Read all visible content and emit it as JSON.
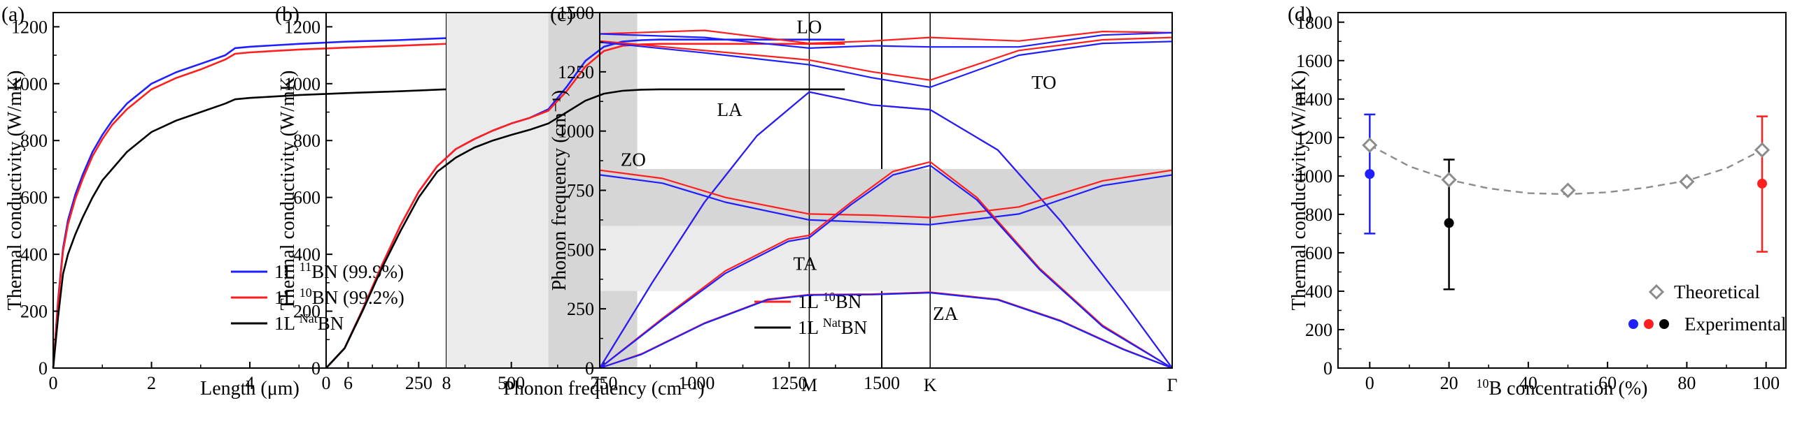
{
  "colors": {
    "blue": "#1f1fff",
    "red": "#ff1f1f",
    "black": "#000000",
    "gray": "#8c8c8c",
    "shade_light": "#ebebeb",
    "shade_dark": "#d6d6d6"
  },
  "chart_data": [
    {
      "id": "a",
      "panel_label": "(a)",
      "type": "line",
      "xlabel": "Length (μm)",
      "ylabel": "Thermal conductivity (W/mK)",
      "xlim": [
        0,
        8
      ],
      "ylim": [
        0,
        1250
      ],
      "xticks": [
        0,
        2,
        4,
        6,
        8
      ],
      "yticks": [
        0,
        200,
        400,
        600,
        800,
        1000,
        1200
      ],
      "legend_position": "bottom-right",
      "series": [
        {
          "name": "1L ¹¹BN (99.9%)",
          "legend": {
            "pre": "1L ",
            "sup": "11",
            "post": "BN (99.9%)"
          },
          "color": "#1f1fff",
          "x": [
            0,
            0.1,
            0.2,
            0.3,
            0.45,
            0.6,
            0.8,
            1.0,
            1.2,
            1.5,
            2.0,
            2.5,
            3.0,
            3.5,
            3.7,
            4.0,
            5.0,
            6.0,
            7.0,
            8.0
          ],
          "y": [
            0,
            240,
            420,
            520,
            610,
            680,
            760,
            820,
            870,
            930,
            1000,
            1040,
            1070,
            1100,
            1125,
            1130,
            1140,
            1148,
            1153,
            1160
          ]
        },
        {
          "name": "1L ¹⁰BN (99.2%)",
          "legend": {
            "pre": "1L ",
            "sup": "10",
            "post": "BN (99.2%)"
          },
          "color": "#ff1f1f",
          "x": [
            0,
            0.1,
            0.2,
            0.3,
            0.45,
            0.6,
            0.8,
            1.0,
            1.2,
            1.5,
            2.0,
            2.5,
            3.0,
            3.5,
            3.7,
            4.0,
            5.0,
            6.0,
            7.0,
            8.0
          ],
          "y": [
            0,
            230,
            410,
            505,
            595,
            665,
            745,
            805,
            855,
            910,
            980,
            1020,
            1050,
            1085,
            1105,
            1110,
            1120,
            1127,
            1133,
            1140
          ]
        },
        {
          "name": "1L ᴺᵃᵗBN",
          "legend": {
            "pre": "1L ",
            "sup": "Nat",
            "post": "BN"
          },
          "color": "#000000",
          "x": [
            0,
            0.1,
            0.2,
            0.3,
            0.45,
            0.6,
            0.8,
            1.0,
            1.2,
            1.5,
            2.0,
            2.5,
            3.0,
            3.5,
            3.7,
            4.0,
            5.0,
            6.0,
            7.0,
            8.0
          ],
          "y": [
            0,
            180,
            330,
            400,
            470,
            530,
            600,
            660,
            700,
            760,
            830,
            870,
            900,
            930,
            945,
            950,
            960,
            967,
            973,
            980
          ]
        }
      ]
    },
    {
      "id": "b",
      "panel_label": "(b)",
      "type": "line",
      "xlabel": "Phonon frequency (cm⁻¹)",
      "ylabel": "Thermal conductivity (W/mK)",
      "xlim": [
        0,
        1500
      ],
      "ylim": [
        0,
        1250
      ],
      "xticks": [
        0,
        250,
        500,
        750,
        1000,
        1250,
        1500
      ],
      "yticks": [
        0,
        200,
        400,
        600,
        800,
        1000,
        1200
      ],
      "legend_position": "bottom-right",
      "shaded_regions": [
        {
          "from": 325,
          "to": 600,
          "tone": "light"
        },
        {
          "from": 600,
          "to": 840,
          "tone": "dark"
        }
      ],
      "series": [
        {
          "name": "1L ¹¹BN",
          "legend": {
            "pre": "1L ",
            "sup": "11",
            "post": "BN"
          },
          "color": "#1f1fff",
          "x": [
            0,
            50,
            100,
            150,
            200,
            250,
            300,
            350,
            400,
            450,
            500,
            550,
            600,
            650,
            700,
            750,
            800,
            850,
            900,
            1000,
            1200,
            1400
          ],
          "y": [
            0,
            70,
            210,
            360,
            500,
            620,
            710,
            770,
            805,
            835,
            860,
            880,
            910,
            990,
            1080,
            1130,
            1148,
            1153,
            1155,
            1155,
            1155,
            1155
          ]
        },
        {
          "name": "1L ¹⁰BN",
          "legend": {
            "pre": "1L ",
            "sup": "10",
            "post": "BN"
          },
          "color": "#ff1f1f",
          "x": [
            0,
            50,
            100,
            150,
            200,
            250,
            300,
            350,
            400,
            450,
            500,
            550,
            600,
            650,
            700,
            750,
            800,
            850,
            900,
            1000,
            1200,
            1400
          ],
          "y": [
            0,
            70,
            210,
            360,
            500,
            620,
            710,
            770,
            805,
            835,
            860,
            880,
            905,
            975,
            1060,
            1115,
            1133,
            1138,
            1140,
            1140,
            1140,
            1140
          ]
        },
        {
          "name": "1L ᴺᵃᵗBN",
          "legend": {
            "pre": "1L ",
            "sup": "Nat",
            "post": "BN"
          },
          "color": "#000000",
          "x": [
            0,
            50,
            100,
            150,
            200,
            250,
            300,
            350,
            400,
            450,
            500,
            550,
            600,
            650,
            700,
            750,
            800,
            850,
            900,
            1000,
            1200,
            1400
          ],
          "y": [
            0,
            70,
            205,
            350,
            480,
            600,
            690,
            740,
            775,
            800,
            820,
            838,
            860,
            900,
            940,
            965,
            975,
            979,
            980,
            980,
            980,
            980
          ]
        }
      ]
    },
    {
      "id": "c",
      "panel_label": "(c)",
      "type": "line",
      "ylabel": "Phonon frequency (cm⁻¹)",
      "ylim": [
        0,
        1500
      ],
      "yticks": [
        0,
        250,
        500,
        750,
        1000,
        1250,
        1500
      ],
      "kpoints": [
        {
          "label": "Γ",
          "pos": 0
        },
        {
          "label": "M",
          "pos": 1
        },
        {
          "label": "K",
          "pos": 1.577
        },
        {
          "label": "Γ",
          "pos": 2.732
        }
      ],
      "shaded_regions": [
        {
          "from": 325,
          "to": 600,
          "tone": "light"
        },
        {
          "from": 600,
          "to": 840,
          "tone": "dark"
        }
      ],
      "annotations": [
        {
          "text": "LO",
          "x": 1.0,
          "y": 1440
        },
        {
          "text": "TO",
          "x": 2.12,
          "y": 1205
        },
        {
          "text": "LA",
          "x": 0.62,
          "y": 1090
        },
        {
          "text": "ZO",
          "x": 0.16,
          "y": 880
        },
        {
          "text": "TA",
          "x": 0.98,
          "y": 440
        },
        {
          "text": "ZA",
          "x": 1.65,
          "y": 230
        }
      ],
      "series": [
        {
          "name": "LO",
          "color": "#ff1f1f",
          "x": [
            0,
            0.5,
            1.0,
            1.3,
            1.577,
            2.0,
            2.4,
            2.732
          ],
          "y": [
            1410,
            1425,
            1370,
            1380,
            1395,
            1380,
            1420,
            1415
          ]
        },
        {
          "name": "LO",
          "color": "#1f1fff",
          "x": [
            0,
            0.5,
            1.0,
            1.3,
            1.577,
            2.0,
            2.4,
            2.732
          ],
          "y": [
            1410,
            1395,
            1350,
            1360,
            1355,
            1355,
            1405,
            1415
          ]
        },
        {
          "name": "TO",
          "color": "#ff1f1f",
          "x": [
            0,
            0.5,
            1.0,
            1.3,
            1.577,
            2.0,
            2.4,
            2.732
          ],
          "y": [
            1380,
            1340,
            1300,
            1250,
            1215,
            1340,
            1385,
            1395
          ]
        },
        {
          "name": "TO",
          "color": "#1f1fff",
          "x": [
            0,
            0.5,
            1.0,
            1.3,
            1.577,
            2.0,
            2.4,
            2.732
          ],
          "y": [
            1375,
            1330,
            1280,
            1225,
            1185,
            1320,
            1370,
            1378
          ]
        },
        {
          "name": "LA",
          "color": "#ff1f1f",
          "x": [
            0,
            0.25,
            0.5,
            0.75,
            1.0,
            1.3,
            1.577,
            1.9,
            2.2,
            2.5,
            2.732
          ],
          "y": [
            0,
            360,
            700,
            980,
            1165,
            1110,
            1090,
            920,
            620,
            280,
            0
          ]
        },
        {
          "name": "LA",
          "color": "#1f1fff",
          "x": [
            0,
            0.25,
            0.5,
            0.75,
            1.0,
            1.3,
            1.577,
            1.9,
            2.2,
            2.5,
            2.732
          ],
          "y": [
            0,
            360,
            700,
            980,
            1165,
            1110,
            1090,
            920,
            620,
            280,
            0
          ]
        },
        {
          "name": "ZO",
          "color": "#ff1f1f",
          "x": [
            0,
            0.3,
            0.6,
            1.0,
            1.3,
            1.577,
            2.0,
            2.4,
            2.732
          ],
          "y": [
            835,
            800,
            720,
            650,
            645,
            635,
            680,
            790,
            835
          ]
        },
        {
          "name": "ZO",
          "color": "#1f1fff",
          "x": [
            0,
            0.3,
            0.6,
            1.0,
            1.3,
            1.577,
            2.0,
            2.4,
            2.732
          ],
          "y": [
            815,
            780,
            700,
            625,
            615,
            605,
            650,
            770,
            815
          ]
        },
        {
          "name": "TA",
          "color": "#ff1f1f",
          "x": [
            0,
            0.3,
            0.6,
            0.9,
            1.0,
            1.2,
            1.4,
            1.577,
            1.8,
            2.1,
            2.4,
            2.732
          ],
          "y": [
            0,
            210,
            410,
            545,
            560,
            700,
            830,
            870,
            720,
            420,
            180,
            0
          ]
        },
        {
          "name": "TA",
          "color": "#1f1fff",
          "x": [
            0,
            0.3,
            0.6,
            0.9,
            1.0,
            1.2,
            1.4,
            1.577,
            1.8,
            2.1,
            2.4,
            2.732
          ],
          "y": [
            0,
            205,
            400,
            535,
            550,
            690,
            815,
            855,
            710,
            415,
            175,
            0
          ]
        },
        {
          "name": "ZA",
          "color": "#ff1f1f",
          "x": [
            0,
            0.2,
            0.5,
            0.8,
            1.0,
            1.3,
            1.577,
            1.9,
            2.2,
            2.5,
            2.732
          ],
          "y": [
            0,
            60,
            190,
            290,
            310,
            312,
            320,
            290,
            200,
            80,
            0
          ]
        },
        {
          "name": "ZA",
          "color": "#1f1fff",
          "x": [
            0,
            0.2,
            0.5,
            0.8,
            1.0,
            1.3,
            1.577,
            1.9,
            2.2,
            2.5,
            2.732
          ],
          "y": [
            0,
            58,
            188,
            288,
            308,
            310,
            318,
            288,
            198,
            78,
            0
          ]
        }
      ]
    },
    {
      "id": "d",
      "panel_label": "(d)",
      "type": "scatter",
      "xlabel_sup": "10",
      "xlabel": "B concentration (%)",
      "ylabel": "Thermal conductivity (W/mK)",
      "xlim": [
        -8,
        105
      ],
      "ylim": [
        0,
        1850
      ],
      "xticks": [
        0,
        20,
        40,
        60,
        80,
        100
      ],
      "yticks": [
        0,
        200,
        400,
        600,
        800,
        1000,
        1200,
        1400,
        1600,
        1800
      ],
      "legend_position": "bottom-right",
      "legend": {
        "theoretical": "Theoretical",
        "experimental": "Experimental"
      },
      "theoretical": {
        "color": "#8c8c8c",
        "x": [
          0,
          20,
          50,
          80,
          99
        ],
        "y": [
          1160,
          980,
          925,
          970,
          1135
        ]
      },
      "fit_curve": {
        "color": "#8c8c8c",
        "x": [
          0,
          10,
          20,
          30,
          40,
          50,
          60,
          70,
          80,
          90,
          99
        ],
        "y": [
          1160,
          1050,
          980,
          935,
          910,
          905,
          915,
          940,
          975,
          1040,
          1135
        ]
      },
      "experimental": [
        {
          "x": 0,
          "y": 1010,
          "err_low": 700,
          "err_high": 1320,
          "color": "#1f1fff"
        },
        {
          "x": 20,
          "y": 755,
          "err_low": 410,
          "err_high": 1085,
          "color": "#000000"
        },
        {
          "x": 99,
          "y": 960,
          "err_low": 605,
          "err_high": 1310,
          "color": "#ff1f1f"
        }
      ]
    }
  ]
}
